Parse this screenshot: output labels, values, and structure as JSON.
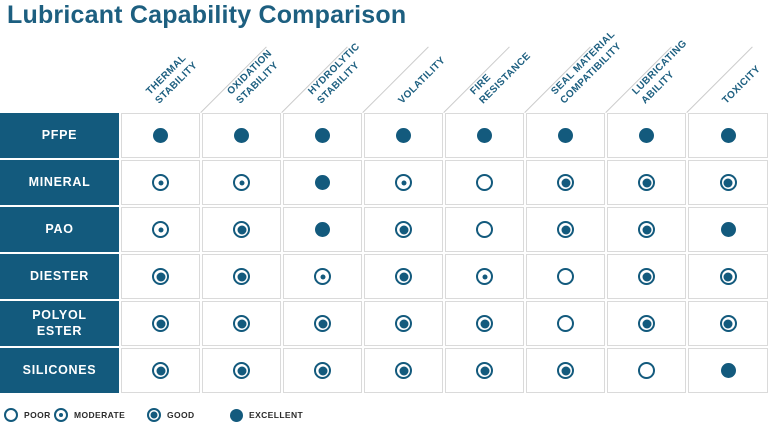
{
  "title": "Lubricant Capability Comparison",
  "colors": {
    "accent": "#135A7D",
    "title": "#1D5F80",
    "cell_border": "#DADADA",
    "diagonal_line": "#CCCCCC",
    "legend_text": "#2B2B2B"
  },
  "chart_data": {
    "type": "table",
    "title": "Lubricant Capability Comparison",
    "rating_scale": [
      "poor",
      "moderate",
      "good",
      "excellent"
    ],
    "columns": [
      {
        "label": "THERMAL STABILITY",
        "lines": [
          "THERMAL",
          "STABILITY"
        ]
      },
      {
        "label": "OXIDATION STABILITY",
        "lines": [
          "OXIDATION",
          "STABILITY"
        ]
      },
      {
        "label": "HYDROLYTIC STABILITY",
        "lines": [
          "HYDROLYTIC",
          "STABILITY"
        ]
      },
      {
        "label": "VOLATILITY",
        "lines": [
          "VOLATILITY"
        ]
      },
      {
        "label": "FIRE RESISTANCE",
        "lines": [
          "FIRE",
          "RESISTANCE"
        ]
      },
      {
        "label": "SEAL MATERIAL COMPATIBILITY",
        "lines": [
          "SEAL MATERIAL",
          "COMPATIBILITY"
        ]
      },
      {
        "label": "LUBRICATING ABILITY",
        "lines": [
          "LUBRICATING",
          "ABILITY"
        ]
      },
      {
        "label": "TOXICITY",
        "lines": [
          "TOXICITY"
        ]
      }
    ],
    "rows": [
      {
        "label": "PFPE",
        "lines": [
          "PFPE"
        ],
        "ratings": [
          "excellent",
          "excellent",
          "excellent",
          "excellent",
          "excellent",
          "excellent",
          "excellent",
          "excellent"
        ]
      },
      {
        "label": "MINERAL",
        "lines": [
          "MINERAL"
        ],
        "ratings": [
          "moderate",
          "moderate",
          "excellent",
          "moderate",
          "poor",
          "good",
          "good",
          "good"
        ]
      },
      {
        "label": "PAO",
        "lines": [
          "PAO"
        ],
        "ratings": [
          "moderate",
          "good",
          "excellent",
          "good",
          "poor",
          "good",
          "good",
          "excellent"
        ]
      },
      {
        "label": "DIESTER",
        "lines": [
          "DIESTER"
        ],
        "ratings": [
          "good",
          "good",
          "moderate",
          "good",
          "moderate",
          "poor",
          "good",
          "good"
        ]
      },
      {
        "label": "POLYOL ESTER",
        "lines": [
          "POLYOL",
          "ESTER"
        ],
        "ratings": [
          "good",
          "good",
          "good",
          "good",
          "good",
          "poor",
          "good",
          "good"
        ]
      },
      {
        "label": "SILICONES",
        "lines": [
          "SILICONES"
        ],
        "ratings": [
          "good",
          "good",
          "good",
          "good",
          "good",
          "good",
          "poor",
          "excellent"
        ]
      }
    ]
  },
  "legend": [
    {
      "key": "poor",
      "label": "POOR"
    },
    {
      "key": "moderate",
      "label": "MODERATE"
    },
    {
      "key": "good",
      "label": "GOOD"
    },
    {
      "key": "excellent",
      "label": "EXCELLENT"
    }
  ]
}
